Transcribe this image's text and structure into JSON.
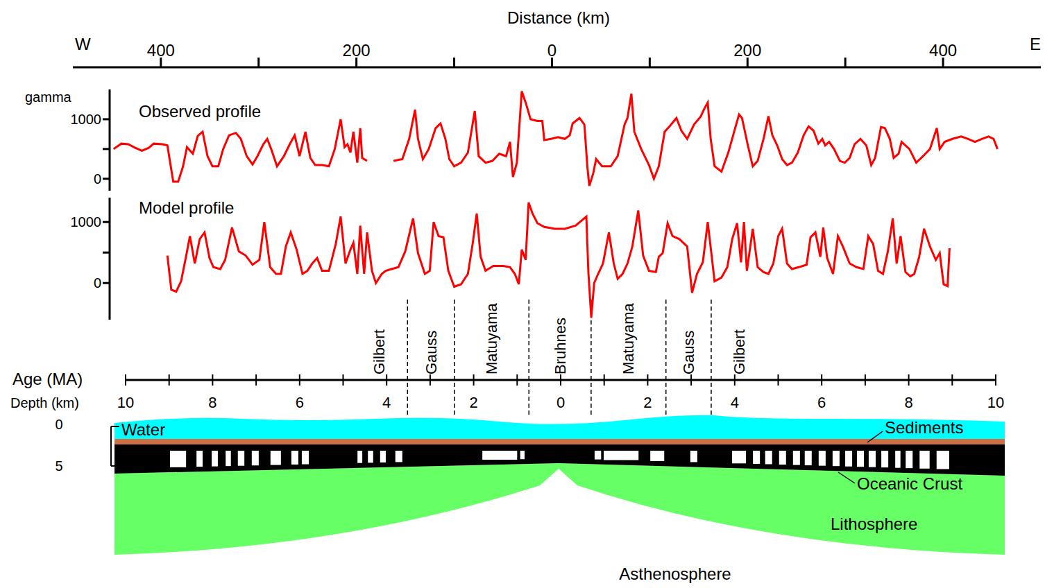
{
  "distance_axis": {
    "label": "Distance (km)",
    "left_label": "W",
    "right_label": "E",
    "xlim": [
      -490,
      500
    ],
    "xticks": [
      {
        "value": -400,
        "label": "400"
      },
      {
        "value": -200,
        "label": "200"
      },
      0,
      200,
      400
    ],
    "minor_ticks": [
      -300,
      -100,
      100,
      300
    ]
  },
  "chart_data": [
    {
      "type": "line",
      "title": "Observed profile",
      "y_label": "gamma",
      "xlim": [
        -452,
        500
      ],
      "ylim": [
        -200,
        1500
      ],
      "yticks": [
        0,
        1000
      ],
      "minor_yticks": [
        500
      ],
      "color": "#ff0000",
      "x": [
        -448,
        -440,
        -433,
        -426,
        -419,
        -412,
        -407,
        -398,
        -393,
        -387,
        -382,
        -377,
        -373,
        -367,
        -362,
        -357,
        -352,
        -347,
        -341,
        -336,
        -330,
        -323,
        -318,
        -312,
        -306,
        -301,
        -295,
        -291,
        -287,
        -281,
        -274,
        -268,
        -263,
        -258,
        -252,
        -247,
        -242,
        -235,
        -228,
        -222,
        -216,
        -212,
        -209,
        -206,
        -203,
        -199,
        -196,
        -194,
        -189,
        -175,
        -162,
        -153,
        -146,
        -140,
        -137,
        -132,
        -126,
        -119,
        -114,
        -109,
        -105,
        -100,
        -93,
        -86,
        -79,
        -75,
        -68,
        -61,
        -54,
        -47,
        -43,
        -40,
        -36,
        -31,
        -27,
        -22,
        -15,
        -10,
        -8,
        -1,
        6,
        13,
        18,
        21,
        28,
        33,
        36,
        38,
        42,
        45,
        51,
        60,
        67,
        74,
        77,
        81,
        84,
        91,
        99,
        104,
        109,
        115,
        120,
        127,
        132,
        138,
        145,
        152,
        155,
        159,
        162,
        166,
        173,
        180,
        187,
        191,
        194,
        200,
        205,
        210,
        216,
        221,
        225,
        230,
        235,
        240,
        245,
        251,
        257,
        262,
        267,
        272,
        276,
        279,
        283,
        288,
        294,
        299,
        304,
        309,
        315,
        321,
        326,
        330,
        336,
        340,
        345,
        349,
        354,
        357,
        365,
        372,
        379,
        386,
        393,
        396,
        401,
        409,
        418,
        425,
        432,
        439,
        446,
        451,
        455
      ],
      "values": [
        500,
        590,
        580,
        520,
        470,
        520,
        590,
        580,
        560,
        -50,
        -50,
        210,
        530,
        420,
        720,
        790,
        380,
        210,
        210,
        500,
        730,
        770,
        670,
        380,
        240,
        380,
        580,
        670,
        500,
        210,
        380,
        580,
        730,
        380,
        790,
        350,
        230,
        230,
        210,
        500,
        1000,
        530,
        580,
        440,
        790,
        270,
        850,
        350,
        300,
        null,
        300,
        330,
        670,
        1160,
        670,
        330,
        500,
        850,
        930,
        670,
        330,
        210,
        270,
        440,
        1140,
        380,
        270,
        300,
        420,
        380,
        620,
        30,
        270,
        1470,
        1280,
        1000,
        970,
        970,
        650,
        670,
        700,
        670,
        730,
        930,
        1020,
        910,
        210,
        -120,
        90,
        330,
        210,
        210,
        380,
        910,
        1020,
        1430,
        790,
        500,
        230,
        0,
        210,
        790,
        880,
        1020,
        810,
        670,
        910,
        1050,
        1160,
        1280,
        670,
        210,
        120,
        440,
        850,
        1080,
        1020,
        560,
        210,
        300,
        670,
        1050,
        730,
        560,
        330,
        230,
        270,
        440,
        730,
        880,
        810,
        590,
        670,
        560,
        620,
        500,
        300,
        270,
        350,
        580,
        670,
        560,
        230,
        350,
        870,
        850,
        670,
        350,
        420,
        620,
        500,
        270,
        380,
        500,
        850,
        500,
        620,
        670,
        710,
        670,
        620,
        670,
        710,
        670,
        500
      ]
    },
    {
      "type": "line",
      "title": "Model profile",
      "xlim": [
        -452,
        500
      ],
      "ylim": [
        -600,
        1400
      ],
      "yticks": [
        0,
        1000
      ],
      "minor_yticks": [
        500
      ],
      "color": "#ff0000",
      "x": [
        -393,
        -389,
        -384,
        -379,
        -374,
        -370,
        -365,
        -360,
        -355,
        -350,
        -346,
        -339,
        -334,
        -327,
        -320,
        -313,
        -306,
        -299,
        -294,
        -288,
        -282,
        -277,
        -272,
        -267,
        -261,
        -255,
        -250,
        -245,
        -240,
        -235,
        -228,
        -221,
        -216,
        -211,
        -206,
        -203,
        -199,
        -196,
        -192,
        -189,
        -184,
        -180,
        -174,
        -170,
        -164,
        -157,
        -150,
        -142,
        -137,
        -130,
        -125,
        -121,
        -116,
        -111,
        -106,
        -100,
        -93,
        -86,
        -81,
        -77,
        -73,
        -68,
        -60,
        -50,
        -43,
        -38,
        -34,
        -31,
        -27,
        -24,
        -20,
        -15,
        -8,
        3,
        13,
        24,
        35,
        37,
        40,
        43,
        47,
        52,
        58,
        63,
        67,
        72,
        77,
        82,
        88,
        93,
        99,
        106,
        109,
        113,
        118,
        123,
        130,
        138,
        143,
        148,
        154,
        159,
        166,
        173,
        179,
        184,
        189,
        193,
        196,
        199,
        205,
        210,
        216,
        221,
        226,
        231,
        235,
        240,
        245,
        252,
        260,
        264,
        269,
        274,
        277,
        281,
        287,
        292,
        297,
        304,
        311,
        318,
        323,
        328,
        333,
        338,
        343,
        348,
        352,
        356,
        361,
        366,
        370,
        375,
        380,
        386,
        392,
        396,
        400,
        404,
        406
      ],
      "values": [
        450,
        -110,
        -140,
        30,
        430,
        770,
        320,
        720,
        830,
        410,
        260,
        230,
        380,
        910,
        520,
        450,
        300,
        380,
        1000,
        260,
        150,
        150,
        600,
        830,
        550,
        150,
        200,
        320,
        410,
        200,
        200,
        640,
        1090,
        320,
        550,
        660,
        150,
        940,
        150,
        830,
        200,
        0,
        150,
        200,
        230,
        260,
        520,
        1060,
        490,
        150,
        200,
        1000,
        770,
        750,
        200,
        -60,
        -20,
        150,
        660,
        1140,
        430,
        200,
        280,
        280,
        260,
        150,
        -20,
        550,
        380,
        1320,
        1140,
        980,
        920,
        890,
        890,
        940,
        1090,
        200,
        -570,
        0,
        150,
        320,
        830,
        320,
        70,
        150,
        320,
        600,
        1190,
        450,
        200,
        180,
        430,
        490,
        980,
        770,
        720,
        600,
        -160,
        150,
        340,
        1000,
        30,
        90,
        260,
        720,
        980,
        340,
        1000,
        200,
        890,
        260,
        180,
        150,
        320,
        770,
        890,
        320,
        230,
        260,
        300,
        750,
        830,
        430,
        910,
        410,
        150,
        770,
        600,
        320,
        260,
        230,
        770,
        640,
        200,
        150,
        520,
        1060,
        320,
        770,
        180,
        110,
        150,
        430,
        890,
        600,
        380,
        490,
        -20,
        -50,
        570
      ]
    }
  ],
  "age_axis": {
    "label": "Age (MA)",
    "second_label": "Depth (km)",
    "xlim": [
      -10,
      10
    ],
    "xticks": [
      {
        "value": -10,
        "label": "10"
      },
      {
        "value": -8,
        "label": "8"
      },
      {
        "value": -6,
        "label": "6"
      },
      {
        "value": -4,
        "label": "4"
      },
      {
        "value": -2,
        "label": "2"
      },
      0,
      2,
      4,
      6,
      8,
      10
    ],
    "minor_ticks": [
      -9,
      -7,
      -5,
      -3,
      -1,
      1,
      3,
      5,
      7,
      9
    ],
    "chron_boundaries": [
      -3.52,
      -2.44,
      -0.73,
      0.7,
      2.42,
      3.46
    ],
    "chrons": [
      "Gilbert",
      "Gauss",
      "Matuyama",
      "Bruhnes",
      "Matuyama",
      "Gauss",
      "Gilbert"
    ]
  },
  "cross_section": {
    "depth_ticks": [
      0,
      5
    ],
    "labels": {
      "water": "Water",
      "sediments": "Sediments",
      "crust": "Oceanic Crust",
      "lithosphere": "Lithosphere",
      "asthenosphere": "Asthenosphere"
    },
    "reversed_intervals": [
      [
        -8.98,
        -8.61
      ],
      [
        -8.37,
        -8.23
      ],
      [
        -8.02,
        -7.88
      ],
      [
        -7.7,
        -7.58
      ],
      [
        -7.42,
        -7.27
      ],
      [
        -7.1,
        -6.94
      ],
      [
        -6.67,
        -6.43
      ],
      [
        -6.19,
        -6.03
      ],
      [
        -5.95,
        -5.79
      ],
      [
        -4.67,
        -4.56
      ],
      [
        -4.43,
        -4.31
      ],
      [
        -4.15,
        -4.02
      ],
      [
        -3.8,
        -3.64
      ],
      [
        -1.8,
        -1.0
      ],
      [
        -0.93,
        -0.83
      ],
      [
        0.78,
        0.93
      ],
      [
        0.99,
        1.79
      ],
      [
        2.06,
        2.38
      ],
      [
        2.98,
        3.14
      ],
      [
        3.94,
        4.26
      ],
      [
        4.42,
        4.58
      ],
      [
        4.7,
        4.86
      ],
      [
        5.02,
        5.18
      ],
      [
        5.34,
        5.5
      ],
      [
        5.61,
        5.77
      ],
      [
        5.93,
        6.09
      ],
      [
        6.25,
        6.41
      ],
      [
        6.54,
        6.7
      ],
      [
        6.81,
        6.97
      ],
      [
        7.08,
        7.24
      ],
      [
        7.37,
        7.53
      ],
      [
        7.69,
        7.81
      ],
      [
        7.93,
        8.09
      ],
      [
        8.25,
        8.48
      ],
      [
        8.64,
        8.93
      ]
    ]
  }
}
